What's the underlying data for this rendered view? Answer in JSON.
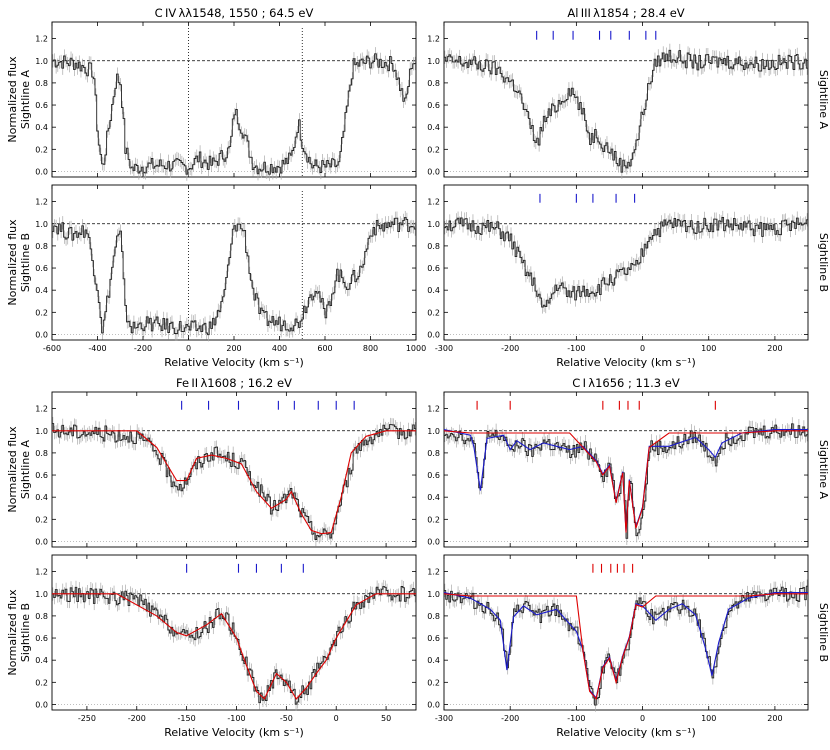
{
  "chart_data": [
    {
      "type": "line",
      "title": "C IV λλ1548, 1550  ;  64.5 eV",
      "panels": [
        {
          "sightline": "Sightline A",
          "ylabel": "Normalized flux",
          "xlim": [
            -600,
            1000
          ],
          "ylim": [
            -0.05,
            1.35
          ],
          "x": [
            -600,
            -500,
            -420,
            -400,
            -380,
            -320,
            -300,
            -280,
            -250,
            -200,
            -100,
            0,
            40,
            100,
            180,
            200,
            240,
            280,
            300,
            400,
            450,
            480,
            500,
            540,
            600,
            660,
            720,
            800,
            900,
            950,
            980,
            1000
          ],
          "y": [
            1.0,
            0.98,
            0.9,
            0.3,
            0.02,
            0.85,
            0.8,
            0.2,
            0.02,
            0.05,
            0.06,
            0.04,
            0.12,
            0.06,
            0.2,
            0.55,
            0.35,
            0.08,
            0.04,
            0.05,
            0.12,
            0.45,
            0.25,
            0.05,
            0.04,
            0.06,
            0.95,
            1.0,
            0.97,
            0.6,
            1.0,
            0.98
          ],
          "markers": [
            0,
            500
          ]
        },
        {
          "sightline": "Sightline B",
          "ylabel": "Normalized flux",
          "xlim": [
            -600,
            1000
          ],
          "ylim": [
            -0.05,
            1.35
          ],
          "x": [
            -600,
            -520,
            -450,
            -400,
            -380,
            -320,
            -300,
            -280,
            -250,
            -200,
            -100,
            0,
            100,
            150,
            200,
            240,
            280,
            320,
            400,
            480,
            520,
            560,
            600,
            650,
            700,
            760,
            800,
            900,
            1000
          ],
          "y": [
            1.0,
            0.9,
            0.95,
            0.4,
            0.02,
            0.85,
            0.9,
            0.2,
            0.05,
            0.1,
            0.08,
            0.05,
            0.07,
            0.3,
            1.0,
            0.95,
            0.4,
            0.15,
            0.1,
            0.1,
            0.3,
            0.45,
            0.15,
            0.55,
            0.45,
            0.6,
            0.95,
            1.0,
            1.0
          ],
          "markers": [
            0,
            500
          ]
        }
      ],
      "xlabel": "Relative Velocity  (km s⁻¹)",
      "xticks": [
        -600,
        -400,
        -200,
        0,
        200,
        400,
        600,
        800,
        1000
      ]
    },
    {
      "type": "line",
      "title": "Al III λ1854  ;  28.4 eV",
      "panels": [
        {
          "sightline": "Sightline A",
          "xlim": [
            -300,
            250
          ],
          "ylim": [
            -0.05,
            1.35
          ],
          "x": [
            -300,
            -260,
            -220,
            -190,
            -170,
            -160,
            -150,
            -130,
            -110,
            -100,
            -90,
            -80,
            -70,
            -60,
            -50,
            -40,
            -30,
            -20,
            -10,
            0,
            10,
            20,
            40,
            80,
            120,
            180,
            250
          ],
          "y": [
            1.0,
            0.98,
            0.92,
            0.75,
            0.4,
            0.25,
            0.45,
            0.6,
            0.75,
            0.65,
            0.5,
            0.3,
            0.35,
            0.25,
            0.2,
            0.1,
            0.05,
            0.1,
            0.25,
            0.55,
            0.8,
            1.0,
            1.05,
            0.98,
            1.0,
            0.97,
            1.0
          ],
          "blue_ticks": [
            -160,
            -135,
            -105,
            -65,
            -48,
            -20,
            5,
            20
          ]
        },
        {
          "sightline": "Sightline B",
          "xlim": [
            -300,
            250
          ],
          "ylim": [
            -0.05,
            1.35
          ],
          "x": [
            -300,
            -260,
            -220,
            -200,
            -180,
            -160,
            -150,
            -130,
            -110,
            -90,
            -70,
            -50,
            -30,
            -10,
            10,
            40,
            80,
            120,
            180,
            250
          ],
          "y": [
            1.0,
            0.98,
            0.95,
            0.85,
            0.6,
            0.4,
            0.2,
            0.45,
            0.35,
            0.4,
            0.4,
            0.5,
            0.55,
            0.6,
            0.9,
            1.0,
            0.98,
            1.0,
            0.95,
            1.0
          ],
          "blue_ticks": [
            -155,
            -100,
            -75,
            -40,
            -12
          ]
        }
      ],
      "ylabel_right": "Sightline A",
      "xlabel": "Relative Velocity  (km s⁻¹)",
      "xticks": [
        -300,
        -200,
        -100,
        0,
        100,
        200
      ]
    },
    {
      "type": "line",
      "title": "Fe II λ1608  ;  16.2 eV",
      "panels": [
        {
          "sightline": "Sightline A",
          "ylabel": "Normalized flux",
          "xlim": [
            -285,
            80
          ],
          "ylim": [
            -0.05,
            1.35
          ],
          "x": [
            -285,
            -240,
            -200,
            -180,
            -165,
            -155,
            -140,
            -125,
            -110,
            -95,
            -80,
            -65,
            -55,
            -45,
            -35,
            -25,
            -15,
            -5,
            5,
            20,
            40,
            80
          ],
          "y": [
            1.0,
            0.98,
            0.95,
            0.8,
            0.55,
            0.5,
            0.7,
            0.8,
            0.75,
            0.7,
            0.5,
            0.3,
            0.35,
            0.45,
            0.25,
            0.1,
            0.05,
            0.08,
            0.4,
            0.85,
            0.98,
            1.0
          ],
          "fit_x": [
            -285,
            -200,
            -180,
            -160,
            -150,
            -140,
            -125,
            -110,
            -95,
            -80,
            -65,
            -50,
            -45,
            -35,
            -25,
            -15,
            -5,
            5,
            15,
            30,
            50,
            80
          ],
          "fit_y": [
            1.0,
            1.0,
            0.85,
            0.55,
            0.55,
            0.75,
            0.78,
            0.75,
            0.7,
            0.45,
            0.3,
            0.38,
            0.45,
            0.25,
            0.1,
            0.07,
            0.08,
            0.4,
            0.8,
            0.95,
            1.0,
            1.0
          ],
          "blue_ticks": [
            -155,
            -128,
            -98,
            -58,
            -42,
            -18,
            0,
            18
          ]
        },
        {
          "sightline": "Sightline B",
          "ylabel": "Normalized flux",
          "xlim": [
            -285,
            80
          ],
          "ylim": [
            -0.05,
            1.35
          ],
          "x": [
            -285,
            -240,
            -200,
            -180,
            -160,
            -150,
            -130,
            -115,
            -100,
            -90,
            -80,
            -72,
            -60,
            -50,
            -40,
            -30,
            -20,
            -10,
            0,
            20,
            40,
            80
          ],
          "y": [
            1.0,
            0.98,
            0.95,
            0.8,
            0.65,
            0.6,
            0.7,
            0.85,
            0.6,
            0.35,
            0.1,
            0.05,
            0.3,
            0.2,
            0.05,
            0.15,
            0.3,
            0.4,
            0.6,
            0.9,
            1.0,
            1.0
          ],
          "fit_x": [
            -285,
            -220,
            -180,
            -160,
            -150,
            -130,
            -115,
            -100,
            -90,
            -80,
            -72,
            -60,
            -50,
            -40,
            -30,
            -20,
            -10,
            0,
            20,
            40,
            80
          ],
          "fit_y": [
            1.0,
            1.0,
            0.8,
            0.65,
            0.62,
            0.72,
            0.82,
            0.6,
            0.35,
            0.12,
            0.05,
            0.28,
            0.2,
            0.05,
            0.15,
            0.28,
            0.4,
            0.6,
            0.9,
            1.0,
            1.0
          ],
          "blue_ticks": [
            -150,
            -98,
            -80,
            -55,
            -33
          ]
        }
      ],
      "xlabel": "Relative Velocity  (km s⁻¹)",
      "xticks": [
        -250,
        -200,
        -150,
        -100,
        -50,
        0,
        50
      ]
    },
    {
      "type": "line",
      "title": "C I λ1656  ;  11.3 eV",
      "panels": [
        {
          "sightline": "Sightline A",
          "xlim": [
            -300,
            250
          ],
          "ylim": [
            -0.05,
            1.35
          ],
          "x": [
            -300,
            -270,
            -255,
            -245,
            -235,
            -210,
            -200,
            -190,
            -170,
            -150,
            -130,
            -110,
            -90,
            -70,
            -60,
            -50,
            -40,
            -30,
            -25,
            -20,
            -10,
            0,
            10,
            40,
            80,
            100,
            110,
            120,
            150,
            200,
            250
          ],
          "y": [
            1.0,
            0.95,
            0.85,
            0.45,
            0.95,
            0.95,
            0.8,
            0.9,
            0.8,
            0.9,
            0.85,
            0.8,
            0.85,
            0.75,
            0.6,
            0.7,
            0.35,
            0.65,
            0.08,
            0.6,
            0.1,
            0.25,
            0.85,
            0.85,
            0.95,
            0.8,
            0.75,
            0.9,
            0.98,
            1.0,
            1.0
          ],
          "fit_x": [
            -300,
            -260,
            -255,
            -245,
            -235,
            -210,
            -200,
            -190,
            -170,
            -150,
            -130,
            -110,
            -90,
            -70,
            -60,
            -50,
            -40,
            -30,
            -25,
            -20,
            -10,
            0,
            10,
            40,
            80,
            100,
            110,
            120,
            150,
            200,
            250
          ],
          "fit_y": [
            1.0,
            0.95,
            0.85,
            0.45,
            0.92,
            0.95,
            0.82,
            0.9,
            0.82,
            0.88,
            0.85,
            0.82,
            0.85,
            0.72,
            0.6,
            0.68,
            0.35,
            0.62,
            0.08,
            0.55,
            0.12,
            0.3,
            0.85,
            0.85,
            0.93,
            0.82,
            0.75,
            0.88,
            0.97,
            1.0,
            1.0
          ],
          "red_ticks": [
            -250,
            -200,
            -60,
            -35,
            -22,
            -5,
            110
          ]
        },
        {
          "sightline": "Sightline B",
          "xlim": [
            -300,
            250
          ],
          "ylim": [
            -0.05,
            1.35
          ],
          "x": [
            -300,
            -260,
            -230,
            -215,
            -205,
            -195,
            -180,
            -160,
            -130,
            -100,
            -90,
            -80,
            -70,
            -60,
            -50,
            -40,
            -30,
            -20,
            -10,
            0,
            20,
            40,
            60,
            80,
            95,
            105,
            115,
            130,
            160,
            200,
            250
          ],
          "y": [
            1.0,
            0.95,
            0.85,
            0.75,
            0.3,
            0.8,
            0.9,
            0.8,
            0.85,
            0.65,
            0.5,
            0.1,
            0.05,
            0.35,
            0.45,
            0.2,
            0.45,
            0.6,
            0.95,
            0.9,
            0.75,
            0.85,
            0.9,
            0.8,
            0.5,
            0.25,
            0.55,
            0.85,
            0.95,
            1.0,
            1.0
          ],
          "fit_x": [
            -300,
            -260,
            -230,
            -215,
            -205,
            -195,
            -180,
            -160,
            -130,
            -100,
            -90,
            -80,
            -70,
            -60,
            -50,
            -40,
            -30,
            -20,
            -10,
            0,
            20,
            40,
            60,
            80,
            95,
            105,
            115,
            130,
            160,
            200,
            250
          ],
          "fit_y": [
            1.0,
            0.95,
            0.85,
            0.75,
            0.3,
            0.78,
            0.88,
            0.8,
            0.85,
            0.65,
            0.48,
            0.12,
            0.05,
            0.33,
            0.42,
            0.2,
            0.43,
            0.6,
            0.9,
            0.88,
            0.75,
            0.85,
            0.9,
            0.8,
            0.5,
            0.25,
            0.55,
            0.85,
            0.95,
            1.0,
            1.0
          ],
          "red_ticks": [
            -75,
            -62,
            -48,
            -38,
            -28,
            -15
          ]
        }
      ],
      "ylabel_right": "Sightline B",
      "xlabel": "Relative Velocity  (km s⁻¹)",
      "xticks": [
        -300,
        -200,
        -100,
        0,
        100,
        200
      ]
    }
  ],
  "yticks": [
    "0.0",
    "0.2",
    "0.4",
    "0.6",
    "0.8",
    "1.0",
    "1.2"
  ],
  "colors": {
    "data": "#222222",
    "error": "#aaaaaa",
    "fit_red": "#dd0000",
    "fit_blue": "#1a1acc",
    "tick_blue": "#1a1acc",
    "tick_red": "#dd0000",
    "continuum": "#000000"
  }
}
